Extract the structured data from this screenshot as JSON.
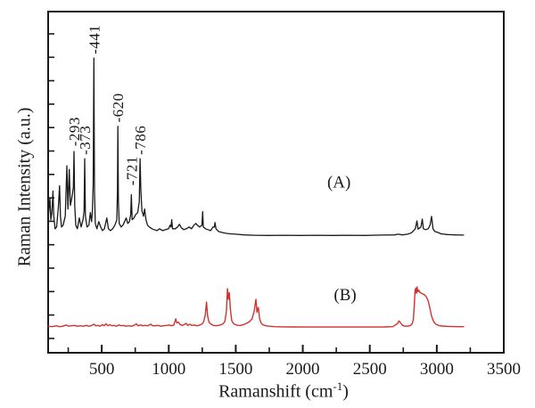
{
  "chart_data": {
    "type": "line",
    "title": "",
    "xlabel": {
      "pre": "Ramanshift (cm",
      "sup": "-1",
      "post": ")"
    },
    "ylabel": "Raman Intensity (a.u.)",
    "x_range": [
      100,
      3500
    ],
    "x_major_ticks": [
      500,
      1000,
      1500,
      2000,
      2500,
      3000,
      3500
    ],
    "x_minor_ticks": [
      250,
      750,
      1250,
      1750,
      2250,
      2750,
      3250
    ],
    "y_axis": {
      "unit": "a.u.",
      "labeled": false,
      "minor_tick_count": 14
    },
    "frame_color": "#1a1a1a",
    "grid": false,
    "legend_position": "none",
    "peak_labels": [
      {
        "text": "-293",
        "x": 293,
        "y_au": 60.5
      },
      {
        "text": "-373",
        "x": 373,
        "y_au": 58.0
      },
      {
        "text": "-441",
        "x": 441,
        "y_au": 87.5
      },
      {
        "text": "-620",
        "x": 620,
        "y_au": 67.5
      },
      {
        "text": "-721",
        "x": 721,
        "y_au": 49.0
      },
      {
        "text": "-786",
        "x": 786,
        "y_au": 58.0
      }
    ],
    "series": [
      {
        "name": "A",
        "color": "#1a1a1a",
        "line_width": 1.3,
        "inline_label": {
          "text": "(A)",
          "x": 2270,
          "y_au": 50
        },
        "baseline_au": 33.7,
        "amplitude_au": 52.7,
        "points": [
          [
            100,
            0.1
          ],
          [
            106,
            0.16
          ],
          [
            113,
            0.22
          ],
          [
            120,
            0.1
          ],
          [
            128,
            0.14
          ],
          [
            136,
            0.26
          ],
          [
            142,
            0.12
          ],
          [
            152,
            0.05
          ],
          [
            163,
            0.06
          ],
          [
            175,
            0.16
          ],
          [
            185,
            0.29
          ],
          [
            192,
            0.12
          ],
          [
            200,
            0.06
          ],
          [
            212,
            0.07
          ],
          [
            228,
            0.12
          ],
          [
            240,
            0.4
          ],
          [
            248,
            0.16
          ],
          [
            258,
            0.38
          ],
          [
            266,
            0.18
          ],
          [
            276,
            0.22
          ],
          [
            288,
            0.28
          ],
          [
            293,
            0.48
          ],
          [
            298,
            0.18
          ],
          [
            306,
            0.07
          ],
          [
            318,
            0.05
          ],
          [
            332,
            0.11
          ],
          [
            346,
            0.06
          ],
          [
            360,
            0.1
          ],
          [
            368,
            0.15
          ],
          [
            373,
            0.44
          ],
          [
            378,
            0.12
          ],
          [
            390,
            0.06
          ],
          [
            404,
            0.07
          ],
          [
            415,
            0.14
          ],
          [
            424,
            0.09
          ],
          [
            430,
            0.15
          ],
          [
            436,
            0.3
          ],
          [
            441,
            1.0
          ],
          [
            446,
            0.25
          ],
          [
            452,
            0.08
          ],
          [
            464,
            0.05
          ],
          [
            478,
            0.09
          ],
          [
            492,
            0.06
          ],
          [
            505,
            0.04
          ],
          [
            520,
            0.05
          ],
          [
            538,
            0.11
          ],
          [
            550,
            0.05
          ],
          [
            565,
            0.04
          ],
          [
            582,
            0.05
          ],
          [
            598,
            0.07
          ],
          [
            612,
            0.1
          ],
          [
            617,
            0.25
          ],
          [
            620,
            0.62
          ],
          [
            624,
            0.2
          ],
          [
            630,
            0.08
          ],
          [
            644,
            0.06
          ],
          [
            658,
            0.07
          ],
          [
            670,
            0.09
          ],
          [
            682,
            0.11
          ],
          [
            694,
            0.08
          ],
          [
            706,
            0.09
          ],
          [
            716,
            0.13
          ],
          [
            721,
            0.24
          ],
          [
            727,
            0.1
          ],
          [
            740,
            0.11
          ],
          [
            754,
            0.13
          ],
          [
            768,
            0.14
          ],
          [
            780,
            0.2
          ],
          [
            786,
            0.44
          ],
          [
            792,
            0.26
          ],
          [
            800,
            0.15
          ],
          [
            812,
            0.12
          ],
          [
            820,
            0.16
          ],
          [
            830,
            0.1
          ],
          [
            842,
            0.07
          ],
          [
            856,
            0.06
          ],
          [
            874,
            0.05
          ],
          [
            892,
            0.045
          ],
          [
            912,
            0.04
          ],
          [
            932,
            0.05
          ],
          [
            954,
            0.04
          ],
          [
            976,
            0.045
          ],
          [
            998,
            0.05
          ],
          [
            1010,
            0.07
          ],
          [
            1017,
            0.06
          ],
          [
            1022,
            0.1
          ],
          [
            1028,
            0.05
          ],
          [
            1048,
            0.05
          ],
          [
            1066,
            0.06
          ],
          [
            1080,
            0.075
          ],
          [
            1094,
            0.055
          ],
          [
            1112,
            0.045
          ],
          [
            1132,
            0.05
          ],
          [
            1152,
            0.06
          ],
          [
            1170,
            0.05
          ],
          [
            1188,
            0.07
          ],
          [
            1202,
            0.08
          ],
          [
            1214,
            0.07
          ],
          [
            1230,
            0.06
          ],
          [
            1248,
            0.07
          ],
          [
            1253,
            0.145
          ],
          [
            1258,
            0.06
          ],
          [
            1274,
            0.05
          ],
          [
            1292,
            0.045
          ],
          [
            1312,
            0.04
          ],
          [
            1330,
            0.06
          ],
          [
            1340,
            0.06
          ],
          [
            1345,
            0.085
          ],
          [
            1352,
            0.05
          ],
          [
            1372,
            0.035
          ],
          [
            1396,
            0.03
          ],
          [
            1426,
            0.025
          ],
          [
            1462,
            0.022
          ],
          [
            1502,
            0.02
          ],
          [
            1562,
            0.016
          ],
          [
            1642,
            0.014
          ],
          [
            1742,
            0.013
          ],
          [
            1862,
            0.014
          ],
          [
            1982,
            0.013
          ],
          [
            2102,
            0.014
          ],
          [
            2222,
            0.013
          ],
          [
            2342,
            0.014
          ],
          [
            2462,
            0.013
          ],
          [
            2582,
            0.015
          ],
          [
            2682,
            0.016
          ],
          [
            2712,
            0.02
          ],
          [
            2742,
            0.016
          ],
          [
            2782,
            0.02
          ],
          [
            2812,
            0.028
          ],
          [
            2840,
            0.05
          ],
          [
            2852,
            0.094
          ],
          [
            2860,
            0.048
          ],
          [
            2872,
            0.055
          ],
          [
            2882,
            0.06
          ],
          [
            2892,
            0.104
          ],
          [
            2900,
            0.05
          ],
          [
            2918,
            0.045
          ],
          [
            2936,
            0.05
          ],
          [
            2950,
            0.07
          ],
          [
            2961,
            0.119
          ],
          [
            2972,
            0.05
          ],
          [
            2986,
            0.035
          ],
          [
            3008,
            0.03
          ],
          [
            3032,
            0.022
          ],
          [
            3080,
            0.018
          ],
          [
            3140,
            0.016
          ],
          [
            3200,
            0.015
          ]
        ]
      },
      {
        "name": "B",
        "color": "#d03330",
        "line_width": 1.4,
        "inline_label": {
          "text": "(B)",
          "x": 2316,
          "y_au": 17
        },
        "baseline_au": 7.3,
        "amplitude_au": 12.0,
        "points": [
          [
            100,
            0.04
          ],
          [
            130,
            0.03
          ],
          [
            160,
            0.05
          ],
          [
            185,
            0.03
          ],
          [
            210,
            0.04
          ],
          [
            235,
            0.07
          ],
          [
            252,
            0.04
          ],
          [
            275,
            0.05
          ],
          [
            298,
            0.06
          ],
          [
            315,
            0.04
          ],
          [
            340,
            0.05
          ],
          [
            362,
            0.04
          ],
          [
            385,
            0.06
          ],
          [
            402,
            0.04
          ],
          [
            420,
            0.05
          ],
          [
            442,
            0.09
          ],
          [
            455,
            0.05
          ],
          [
            470,
            0.06
          ],
          [
            488,
            0.04
          ],
          [
            505,
            0.08
          ],
          [
            518,
            0.05
          ],
          [
            532,
            0.1
          ],
          [
            545,
            0.05
          ],
          [
            560,
            0.08
          ],
          [
            575,
            0.05
          ],
          [
            592,
            0.06
          ],
          [
            610,
            0.04
          ],
          [
            628,
            0.07
          ],
          [
            645,
            0.05
          ],
          [
            662,
            0.06
          ],
          [
            680,
            0.04
          ],
          [
            700,
            0.05
          ],
          [
            722,
            0.04
          ],
          [
            740,
            0.06
          ],
          [
            758,
            0.1
          ],
          [
            770,
            0.05
          ],
          [
            788,
            0.07
          ],
          [
            805,
            0.05
          ],
          [
            825,
            0.06
          ],
          [
            845,
            0.05
          ],
          [
            865,
            0.09
          ],
          [
            880,
            0.05
          ],
          [
            900,
            0.05
          ],
          [
            922,
            0.06
          ],
          [
            942,
            0.04
          ],
          [
            962,
            0.05
          ],
          [
            982,
            0.06
          ],
          [
            1002,
            0.07
          ],
          [
            1020,
            0.05
          ],
          [
            1038,
            0.07
          ],
          [
            1052,
            0.22
          ],
          [
            1060,
            0.12
          ],
          [
            1072,
            0.14
          ],
          [
            1085,
            0.08
          ],
          [
            1100,
            0.06
          ],
          [
            1115,
            0.08
          ],
          [
            1130,
            0.11
          ],
          [
            1142,
            0.06
          ],
          [
            1158,
            0.09
          ],
          [
            1172,
            0.06
          ],
          [
            1190,
            0.07
          ],
          [
            1208,
            0.05
          ],
          [
            1225,
            0.06
          ],
          [
            1245,
            0.09
          ],
          [
            1260,
            0.14
          ],
          [
            1272,
            0.3
          ],
          [
            1282,
            0.63
          ],
          [
            1290,
            0.3
          ],
          [
            1300,
            0.14
          ],
          [
            1315,
            0.09
          ],
          [
            1332,
            0.06
          ],
          [
            1350,
            0.05
          ],
          [
            1368,
            0.06
          ],
          [
            1385,
            0.07
          ],
          [
            1402,
            0.09
          ],
          [
            1418,
            0.15
          ],
          [
            1430,
            0.4
          ],
          [
            1438,
            0.96
          ],
          [
            1445,
            0.7
          ],
          [
            1452,
            0.86
          ],
          [
            1460,
            0.45
          ],
          [
            1470,
            0.18
          ],
          [
            1482,
            0.11
          ],
          [
            1498,
            0.08
          ],
          [
            1515,
            0.06
          ],
          [
            1535,
            0.06
          ],
          [
            1558,
            0.08
          ],
          [
            1580,
            0.11
          ],
          [
            1602,
            0.15
          ],
          [
            1622,
            0.22
          ],
          [
            1638,
            0.42
          ],
          [
            1650,
            0.7
          ],
          [
            1658,
            0.38
          ],
          [
            1668,
            0.5
          ],
          [
            1678,
            0.22
          ],
          [
            1690,
            0.11
          ],
          [
            1705,
            0.07
          ],
          [
            1725,
            0.05
          ],
          [
            1750,
            0.04
          ],
          [
            1790,
            0.03
          ],
          [
            1850,
            0.025
          ],
          [
            1930,
            0.022
          ],
          [
            2030,
            0.02
          ],
          [
            2150,
            0.02
          ],
          [
            2270,
            0.02
          ],
          [
            2390,
            0.02
          ],
          [
            2510,
            0.02
          ],
          [
            2610,
            0.022
          ],
          [
            2670,
            0.03
          ],
          [
            2706,
            0.1
          ],
          [
            2718,
            0.17
          ],
          [
            2730,
            0.12
          ],
          [
            2745,
            0.06
          ],
          [
            2762,
            0.04
          ],
          [
            2782,
            0.045
          ],
          [
            2800,
            0.05
          ],
          [
            2815,
            0.09
          ],
          [
            2825,
            0.2
          ],
          [
            2832,
            0.55
          ],
          [
            2838,
            0.92
          ],
          [
            2843,
            0.97
          ],
          [
            2848,
            0.84
          ],
          [
            2853,
            1.0
          ],
          [
            2858,
            0.88
          ],
          [
            2866,
            0.92
          ],
          [
            2875,
            0.86
          ],
          [
            2888,
            0.84
          ],
          [
            2900,
            0.82
          ],
          [
            2912,
            0.8
          ],
          [
            2925,
            0.74
          ],
          [
            2938,
            0.64
          ],
          [
            2950,
            0.46
          ],
          [
            2962,
            0.28
          ],
          [
            2976,
            0.16
          ],
          [
            2992,
            0.09
          ],
          [
            3012,
            0.06
          ],
          [
            3040,
            0.045
          ],
          [
            3090,
            0.035
          ],
          [
            3150,
            0.03
          ],
          [
            3200,
            0.03
          ]
        ]
      }
    ]
  }
}
